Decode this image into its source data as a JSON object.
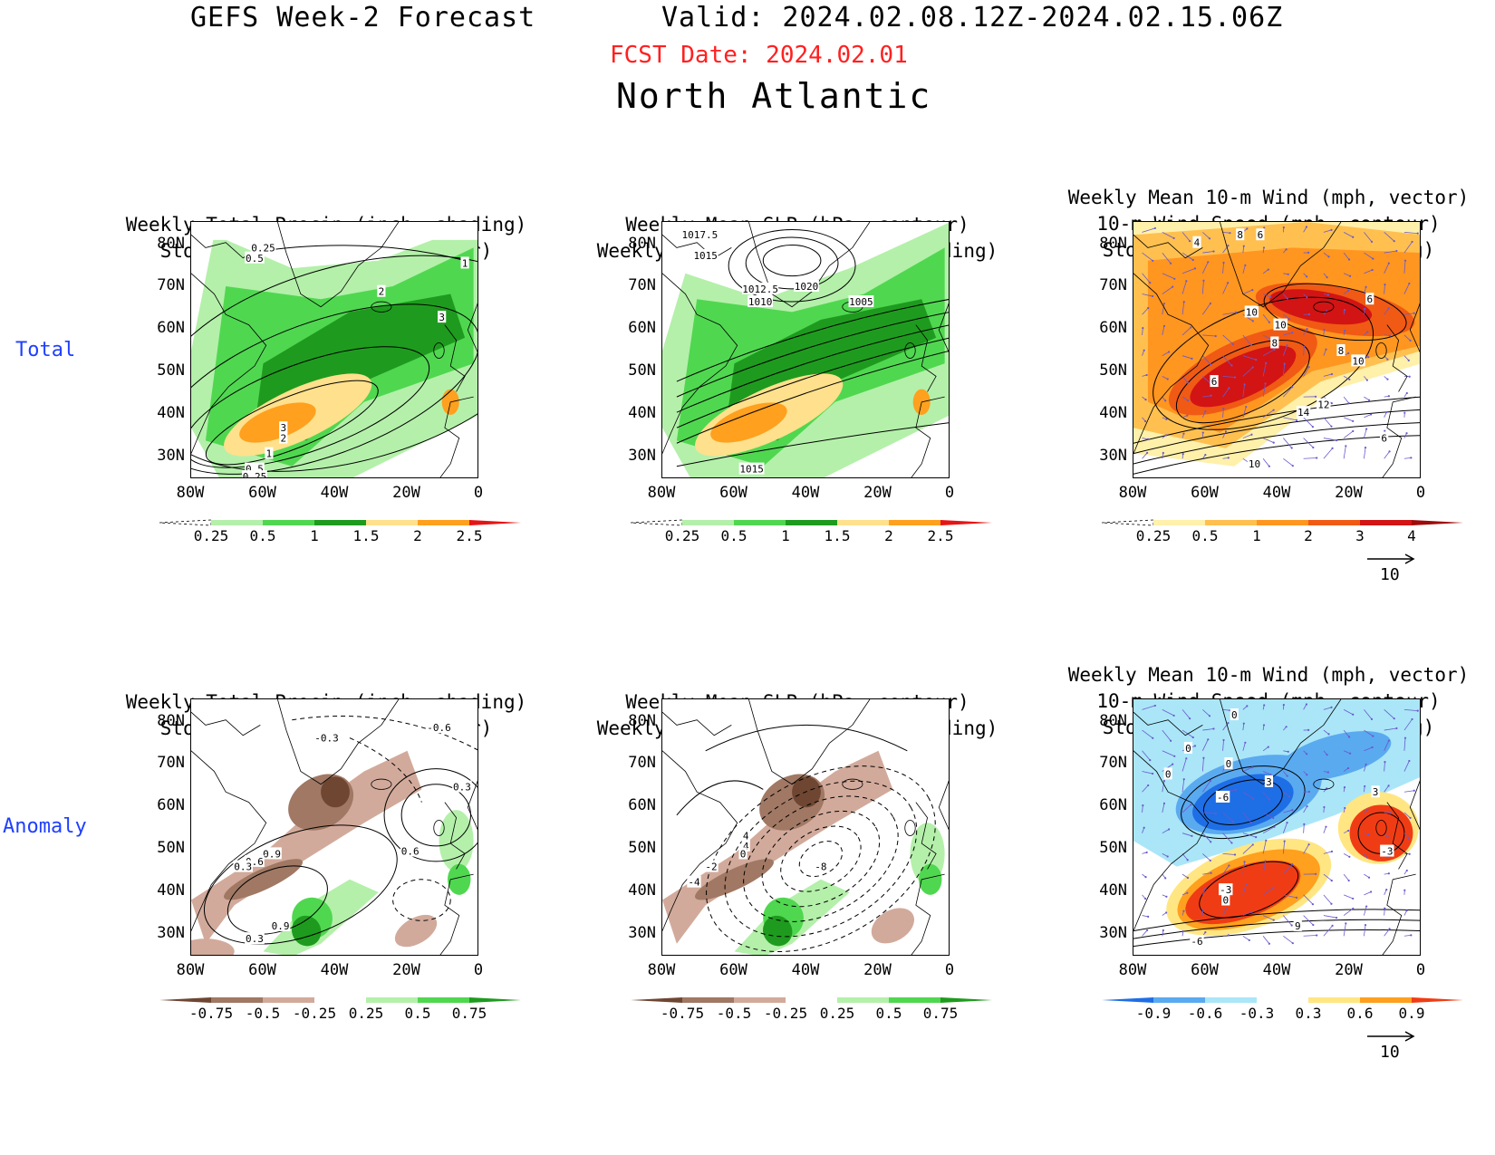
{
  "header": {
    "title": "GEFS Week-2 Forecast",
    "valid": "Valid: 2024.02.08.12Z-2024.02.15.06Z",
    "fcst_date": "FCST Date: 2024.02.01",
    "region": "North Atlantic"
  },
  "rows": [
    "Total",
    "Anomaly"
  ],
  "panel_titles": {
    "precip_track": [
      "Weekly Total Precip (inch, shading)",
      "Storm Track Density (contour)"
    ],
    "slp_precip": [
      "Weekly Mean SLP (hPa, contour)",
      "Weekly Total Precip (inch, shading)"
    ],
    "wind_track": [
      "Weekly Mean 10-m Wind (mph, vector)",
      "10-m Wind Speed (mph, contour)",
      "Storm Track Density (shading)"
    ]
  },
  "axes": {
    "lat_labels": [
      "80N",
      "70N",
      "60N",
      "50N",
      "40N",
      "30N"
    ],
    "lon_labels": [
      "80W",
      "60W",
      "40W",
      "20W",
      "0"
    ]
  },
  "colorbars": {
    "precip_total": [
      "0.25",
      "0.5",
      "1",
      "1.5",
      "2",
      "2.5"
    ],
    "storm_total": [
      "0.25",
      "0.5",
      "1",
      "2",
      "3",
      "4"
    ],
    "precip_anom": [
      "-0.75",
      "-0.5",
      "-0.25",
      "0.25",
      "0.5",
      "0.75"
    ],
    "storm_anom": [
      "-0.9",
      "-0.6",
      "-0.3",
      "0.3",
      "0.6",
      "0.9"
    ],
    "precip_total_colors": [
      "#ffffff",
      "#b4f0aa",
      "#50d750",
      "#1e9b1e",
      "#ffe08c",
      "#ffa01e",
      "#e61414"
    ],
    "storm_total_colors": [
      "#ffffff",
      "#fff0aa",
      "#ffc050",
      "#ff9620",
      "#f05a14",
      "#d21414",
      "#a00a0a"
    ],
    "precip_anom_colors": [
      "#6e4632",
      "#a07864",
      "#d2aa9b",
      "#ffffff",
      "#b4f0aa",
      "#50d750",
      "#1e9b1e"
    ],
    "storm_anom_colors": [
      "#1e6ee6",
      "#5aaaf0",
      "#aae6f8",
      "#ffffff",
      "#ffe682",
      "#ffa01e",
      "#f03c14"
    ]
  },
  "vector_ref": "10",
  "contour_labels": {
    "p1": [
      "0.25",
      "0.5",
      "1",
      "2",
      "3",
      "3",
      "2",
      "1",
      "0.5",
      "0.25"
    ],
    "p2": [
      "1017.5",
      "1015",
      "1012.5",
      "1010",
      "1020",
      "1005",
      "1015"
    ],
    "p3": [
      "8",
      "6",
      "4",
      "10",
      "10",
      "8",
      "6",
      "8",
      "10",
      "6",
      "14",
      "12",
      "6",
      "10"
    ],
    "p4": [
      "-0.3",
      "-0.6",
      "0.3",
      "0.6",
      "0.9",
      "0.6",
      "0.3",
      "0.9",
      "0.3"
    ],
    "p5": [
      "4",
      "4",
      "0",
      "-2",
      "-4",
      "-8"
    ],
    "p6": [
      "0",
      "0",
      "0",
      "0",
      "3",
      "-6",
      "3",
      "-3",
      "0",
      "9",
      "-3",
      "-6"
    ]
  }
}
